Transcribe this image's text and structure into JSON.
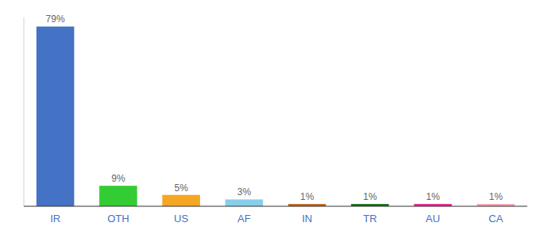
{
  "chart_data": {
    "type": "bar",
    "categories": [
      "IR",
      "OTH",
      "US",
      "AF",
      "IN",
      "TR",
      "AU",
      "CA"
    ],
    "values": [
      79,
      9,
      5,
      3,
      1,
      1,
      1,
      1
    ],
    "value_labels": [
      "79%",
      "9%",
      "5%",
      "3%",
      "1%",
      "1%",
      "1%",
      "1%"
    ],
    "colors": [
      "#4472c4",
      "#33cc33",
      "#f5a623",
      "#87ceeb",
      "#c0651a",
      "#1a6b1a",
      "#e91e8c",
      "#f4a0b0"
    ],
    "ylim": [
      0,
      83
    ],
    "data_labels": true,
    "tick_labels": "x",
    "grid": false
  }
}
